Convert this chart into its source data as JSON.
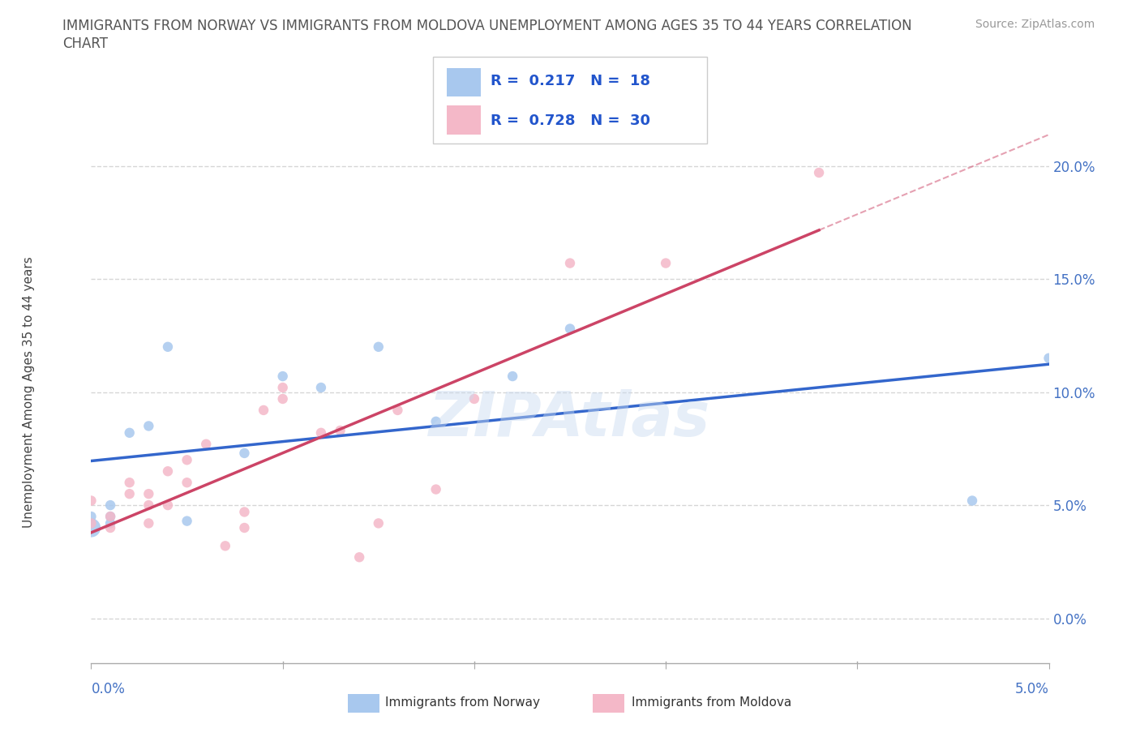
{
  "title_line1": "IMMIGRANTS FROM NORWAY VS IMMIGRANTS FROM MOLDOVA UNEMPLOYMENT AMONG AGES 35 TO 44 YEARS CORRELATION",
  "title_line2": "CHART",
  "source": "Source: ZipAtlas.com",
  "ylabel": "Unemployment Among Ages 35 to 44 years",
  "xlim": [
    0.0,
    0.05
  ],
  "ylim": [
    -0.02,
    0.22
  ],
  "yticks": [
    0.0,
    0.05,
    0.1,
    0.15,
    0.2
  ],
  "ytick_labels": [
    "0.0%",
    "5.0%",
    "10.0%",
    "15.0%",
    "20.0%"
  ],
  "xtick_labels": [
    "0.0%",
    "",
    "",
    "",
    "",
    "5.0%"
  ],
  "xticks": [
    0.0,
    0.01,
    0.02,
    0.03,
    0.04,
    0.05
  ],
  "watermark": "ZIPAtlas",
  "norway_color": "#a8c8ee",
  "moldova_color": "#f4b8c8",
  "norway_R": 0.217,
  "norway_N": 18,
  "moldova_R": 0.728,
  "moldova_N": 30,
  "norway_line_color": "#3366cc",
  "moldova_line_color": "#cc4466",
  "norway_points_x": [
    0.0,
    0.0,
    0.001,
    0.001,
    0.001,
    0.002,
    0.003,
    0.004,
    0.005,
    0.008,
    0.01,
    0.012,
    0.015,
    0.018,
    0.022,
    0.025,
    0.046,
    0.05
  ],
  "norway_points_y": [
    0.04,
    0.045,
    0.042,
    0.045,
    0.05,
    0.082,
    0.085,
    0.12,
    0.043,
    0.073,
    0.107,
    0.102,
    0.12,
    0.087,
    0.107,
    0.128,
    0.052,
    0.115
  ],
  "moldova_points_x": [
    0.0,
    0.0,
    0.001,
    0.001,
    0.002,
    0.002,
    0.003,
    0.003,
    0.003,
    0.004,
    0.004,
    0.005,
    0.005,
    0.006,
    0.007,
    0.008,
    0.008,
    0.009,
    0.01,
    0.01,
    0.012,
    0.013,
    0.014,
    0.015,
    0.016,
    0.018,
    0.02,
    0.025,
    0.03,
    0.038
  ],
  "moldova_points_y": [
    0.042,
    0.052,
    0.04,
    0.045,
    0.055,
    0.06,
    0.042,
    0.05,
    0.055,
    0.05,
    0.065,
    0.06,
    0.07,
    0.077,
    0.032,
    0.04,
    0.047,
    0.092,
    0.097,
    0.102,
    0.082,
    0.083,
    0.027,
    0.042,
    0.092,
    0.057,
    0.097,
    0.157,
    0.157,
    0.197
  ],
  "norway_bubble_sizes": [
    280,
    80,
    80,
    80,
    80,
    80,
    80,
    80,
    80,
    80,
    80,
    80,
    80,
    80,
    80,
    80,
    80,
    80
  ],
  "moldova_bubble_sizes": [
    80,
    80,
    80,
    80,
    80,
    80,
    80,
    80,
    80,
    80,
    80,
    80,
    80,
    80,
    80,
    80,
    80,
    80,
    80,
    80,
    80,
    80,
    80,
    80,
    80,
    80,
    80,
    80,
    80,
    80
  ],
  "background_color": "#ffffff",
  "grid_color": "#cccccc",
  "title_color": "#555555",
  "axis_tick_color": "#4472c4",
  "legend_R_color": "#2255cc",
  "legend_label_color": "#333333"
}
